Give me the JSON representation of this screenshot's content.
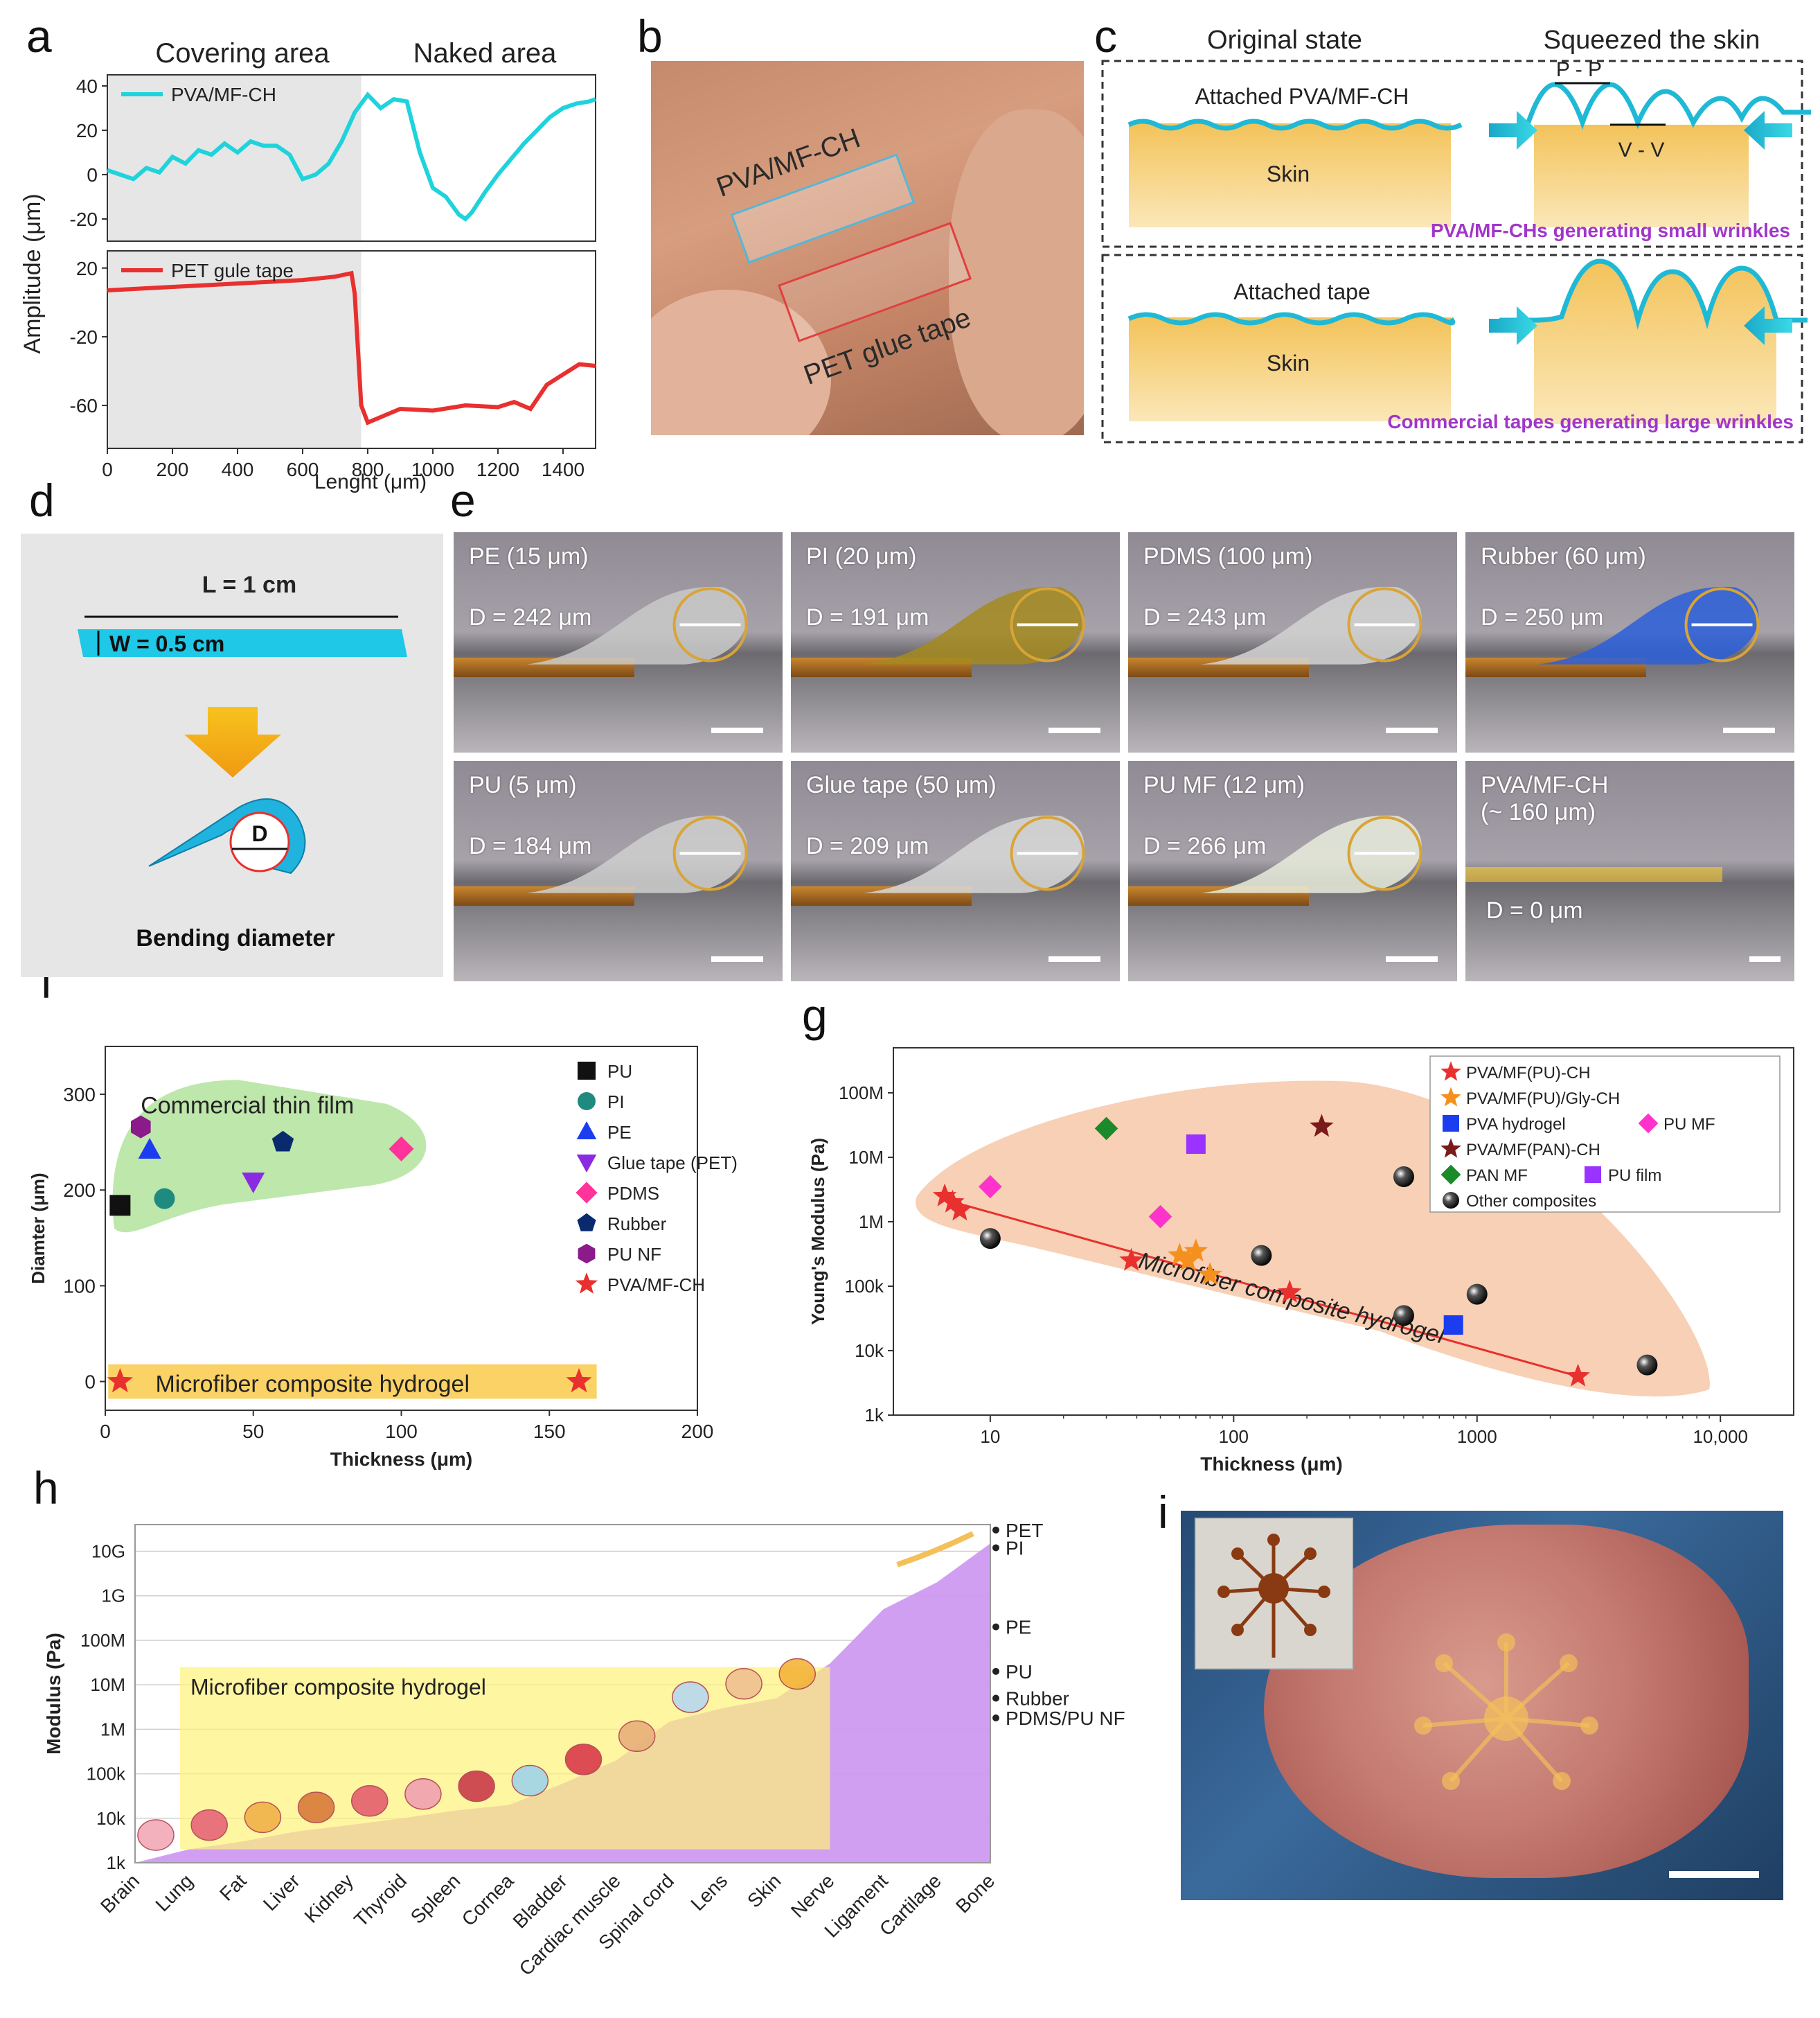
{
  "panel_letters": [
    "a",
    "b",
    "c",
    "d",
    "e",
    "f",
    "g",
    "h",
    "i"
  ],
  "colors": {
    "cyan": "#1fd3dc",
    "red": "#e8302e",
    "skin": "#f5c86a",
    "purple_text": "#a136c9",
    "violet_fill": "#cf9af0",
    "green_fill": "#b7e4a2",
    "peach_fill": "#f8cdb1",
    "yellow_fill": "#fff27a",
    "gray_area": "#e6e6e6"
  },
  "panel_a": {
    "top_header_left": "Covering area",
    "top_header_right": "Naked area",
    "y_label": "Amplitude (μm)",
    "x_label": "Lenght (μm)",
    "chart_data": [
      {
        "type": "line",
        "title": "",
        "legend": "PVA/MF-CH",
        "xlim": [
          0,
          1500
        ],
        "ylim": [
          -30,
          45
        ],
        "yticks": [
          40,
          20,
          0,
          -20
        ],
        "xticks": [
          0,
          200,
          400,
          600,
          800,
          1000,
          1200,
          1400
        ],
        "shaded_x_range": [
          0,
          780
        ],
        "x": [
          0,
          40,
          80,
          120,
          160,
          200,
          240,
          280,
          320,
          360,
          400,
          440,
          480,
          520,
          560,
          600,
          640,
          680,
          720,
          760,
          800,
          840,
          880,
          920,
          960,
          1000,
          1040,
          1080,
          1100,
          1120,
          1160,
          1200,
          1240,
          1280,
          1320,
          1360,
          1400,
          1440,
          1480,
          1500
        ],
        "y": [
          2,
          0,
          -2,
          3,
          1,
          8,
          5,
          11,
          9,
          14,
          10,
          15,
          13,
          13,
          9,
          -2,
          0,
          5,
          15,
          28,
          36,
          30,
          34,
          33,
          10,
          -6,
          -10,
          -18,
          -20,
          -17,
          -8,
          0,
          7,
          14,
          20,
          26,
          30,
          32,
          33,
          34
        ]
      },
      {
        "type": "line",
        "legend": "PET gule tape",
        "xlim": [
          0,
          1500
        ],
        "ylim": [
          -85,
          30
        ],
        "yticks": [
          20,
          -20,
          -60
        ],
        "xticks": [
          0,
          200,
          400,
          600,
          800,
          1000,
          1200,
          1400
        ],
        "shaded_x_range": [
          0,
          780
        ],
        "x": [
          0,
          100,
          200,
          300,
          400,
          500,
          600,
          700,
          750,
          760,
          780,
          800,
          850,
          900,
          1000,
          1100,
          1200,
          1250,
          1300,
          1350,
          1400,
          1450,
          1500
        ],
        "y": [
          7,
          8,
          9,
          10,
          11,
          12,
          13,
          15,
          17,
          5,
          -60,
          -70,
          -66,
          -62,
          -63,
          -60,
          -61,
          -58,
          -62,
          -48,
          -42,
          -36,
          -37
        ]
      }
    ]
  },
  "panel_b": {
    "label_top": "PVA/MF-CH",
    "label_bottom": "PET glue tape"
  },
  "panel_c": {
    "header_left": "Original state",
    "header_right": "Squeezed the skin",
    "top_box": {
      "attached": "Attached PVA/MF-CH",
      "skin": "Skin",
      "pp": "P - P",
      "vv": "V - V",
      "caption": "PVA/MF-CHs generating small wrinkles"
    },
    "bottom_box": {
      "attached": "Attached tape",
      "skin": "Skin",
      "caption": "Commercial tapes generating large wrinkles"
    }
  },
  "panel_d": {
    "length": "L = 1 cm",
    "width": "W = 0.5 cm",
    "d": "D",
    "caption": "Bending diameter"
  },
  "panel_e": {
    "tiles": [
      {
        "label": "PE (15 μm)",
        "d": "D = 242 μm",
        "color": "#c9c9c9"
      },
      {
        "label": "PI (20 μm)",
        "d": "D = 191 μm",
        "color": "#a58a1e"
      },
      {
        "label": "PDMS (100 μm)",
        "d": "D = 243 μm",
        "color": "#d4d4d4"
      },
      {
        "label": "Rubber (60 μm)",
        "d": "D = 250 μm",
        "color": "#2b5fd9"
      },
      {
        "label": "PU (5 μm)",
        "d": "D = 184 μm",
        "color": "#cfcfcf"
      },
      {
        "label": "Glue tape (50 μm)",
        "d": "D = 209 μm",
        "color": "#d8d8d8"
      },
      {
        "label": "PU MF (12 μm)",
        "d": "D = 266 μm",
        "color": "#e8ecdc"
      },
      {
        "label": "PVA/MF-CH\n(~ 160 μm)",
        "d": "D = 0 μm",
        "color": "none"
      }
    ]
  },
  "panel_f": {
    "chart_data": {
      "type": "scatter",
      "title": "",
      "xlabel": "Thickness (μm)",
      "ylabel": "Diamter (μm)",
      "xlim": [
        0,
        200
      ],
      "ylim": [
        -30,
        350
      ],
      "xticks": [
        0,
        50,
        100,
        150,
        200
      ],
      "yticks": [
        0,
        100,
        200,
        300
      ],
      "annotations": [
        "Commercial thin film",
        "Microfiber composite hydrogel"
      ],
      "series": [
        {
          "name": "PU",
          "marker": "square",
          "color": "#111111",
          "points": [
            [
              5,
              184
            ]
          ]
        },
        {
          "name": "PI",
          "marker": "circle",
          "color": "#1e8a80",
          "points": [
            [
              20,
              191
            ]
          ]
        },
        {
          "name": "PE",
          "marker": "triangle-up",
          "color": "#1c3cf0",
          "points": [
            [
              15,
              242
            ]
          ]
        },
        {
          "name": "Glue tape (PET)",
          "marker": "triangle-down",
          "color": "#8a2be2",
          "points": [
            [
              50,
              209
            ]
          ]
        },
        {
          "name": "PDMS",
          "marker": "diamond",
          "color": "#ff3399",
          "points": [
            [
              100,
              243
            ]
          ]
        },
        {
          "name": "Rubber",
          "marker": "pentagon",
          "color": "#0a2a6e",
          "points": [
            [
              60,
              250
            ]
          ]
        },
        {
          "name": "PU NF",
          "marker": "hexagon",
          "color": "#8b1a8b",
          "points": [
            [
              12,
              266
            ]
          ]
        },
        {
          "name": "PVA/MF-CH",
          "marker": "star",
          "color": "#e8302e",
          "points": [
            [
              5,
              0
            ],
            [
              160,
              0
            ]
          ]
        }
      ]
    }
  },
  "panel_g": {
    "chart_data": {
      "type": "scatter",
      "title": "",
      "xlabel": "Thickness (μm)",
      "ylabel": "Young's Modulus (Pa)",
      "xscale": "log",
      "yscale": "log",
      "xlim": [
        4,
        20000
      ],
      "ylim": [
        1000,
        500000000
      ],
      "xtick_labels": [
        "10",
        "100",
        "1000",
        "10,000"
      ],
      "ytick_labels": [
        "1k",
        "10k",
        "100k",
        "1M",
        "10M",
        "100M"
      ],
      "annotation": "Microfiber composite hydrogel",
      "series": [
        {
          "name": "PVA/MF(PU)-CH",
          "marker": "star",
          "color": "#e8302e",
          "points": [
            [
              6.5,
              2500000
            ],
            [
              7,
              2000000
            ],
            [
              7.5,
              1500000
            ],
            [
              38,
              250000
            ],
            [
              170,
              80000
            ],
            [
              2600,
              4000
            ]
          ]
        },
        {
          "name": "PVA/MF(PU)/Gly-CH",
          "marker": "star",
          "color": "#f5901e",
          "points": [
            [
              60,
              300000
            ],
            [
              65,
              250000
            ],
            [
              70,
              350000
            ],
            [
              80,
              150000
            ]
          ]
        },
        {
          "name": "PVA hydrogel",
          "marker": "square",
          "color": "#1c3cf0",
          "points": [
            [
              800,
              25000
            ]
          ]
        },
        {
          "name": "PU MF",
          "marker": "diamond",
          "color": "#ff33cc",
          "points": [
            [
              10,
              3500000
            ],
            [
              50,
              1200000
            ]
          ]
        },
        {
          "name": "PVA/MF(PAN)-CH",
          "marker": "star",
          "color": "#7a1a1a",
          "points": [
            [
              230,
              30000000
            ]
          ]
        },
        {
          "name": "PAN MF",
          "marker": "diamond",
          "color": "#1a8a2a",
          "points": [
            [
              30,
              28000000
            ]
          ]
        },
        {
          "name": "PU film",
          "marker": "square",
          "color": "#9a33ff",
          "points": [
            [
              70,
              16000000
            ]
          ]
        },
        {
          "name": "Other composites",
          "marker": "sphere",
          "color": "#111111",
          "points": [
            [
              10,
              550000
            ],
            [
              130,
              300000
            ],
            [
              500,
              5000000
            ],
            [
              500,
              35000
            ],
            [
              1000,
              75000
            ],
            [
              5000,
              6000
            ]
          ]
        }
      ]
    }
  },
  "panel_h": {
    "chart_data": {
      "type": "area",
      "title": "",
      "ylabel": "Modulus (Pa)",
      "ytick_labels": [
        "1k",
        "10k",
        "100k",
        "1M",
        "10M",
        "100M",
        "1G",
        "10G"
      ],
      "categories": [
        "Brain",
        "Lung",
        "Fat",
        "Liver",
        "Kidney",
        "Thyroid",
        "Spleen",
        "Cornea",
        "Bladder",
        "Cardiac muscle",
        "Spinal cord",
        "Lens",
        "Skin",
        "Nerve",
        "Ligament",
        "Cartilage",
        "Bone"
      ],
      "values": [
        1000,
        2000,
        3000,
        5000,
        7000,
        10000,
        15000,
        20000,
        60000,
        200000,
        1500000,
        3000000,
        5000000,
        30000000,
        500000000,
        2000000000,
        15000000000
      ],
      "annotation": "Microfiber composite hydrogel",
      "right_markers": [
        {
          "label": "PET",
          "value": 30000000000
        },
        {
          "label": "PI",
          "value": 12000000000
        },
        {
          "label": "PE",
          "value": 200000000
        },
        {
          "label": "PU",
          "value": 20000000
        },
        {
          "label": "Rubber",
          "value": 5000000
        },
        {
          "label": "PDMS/PU NF",
          "value": 1800000
        }
      ]
    }
  }
}
